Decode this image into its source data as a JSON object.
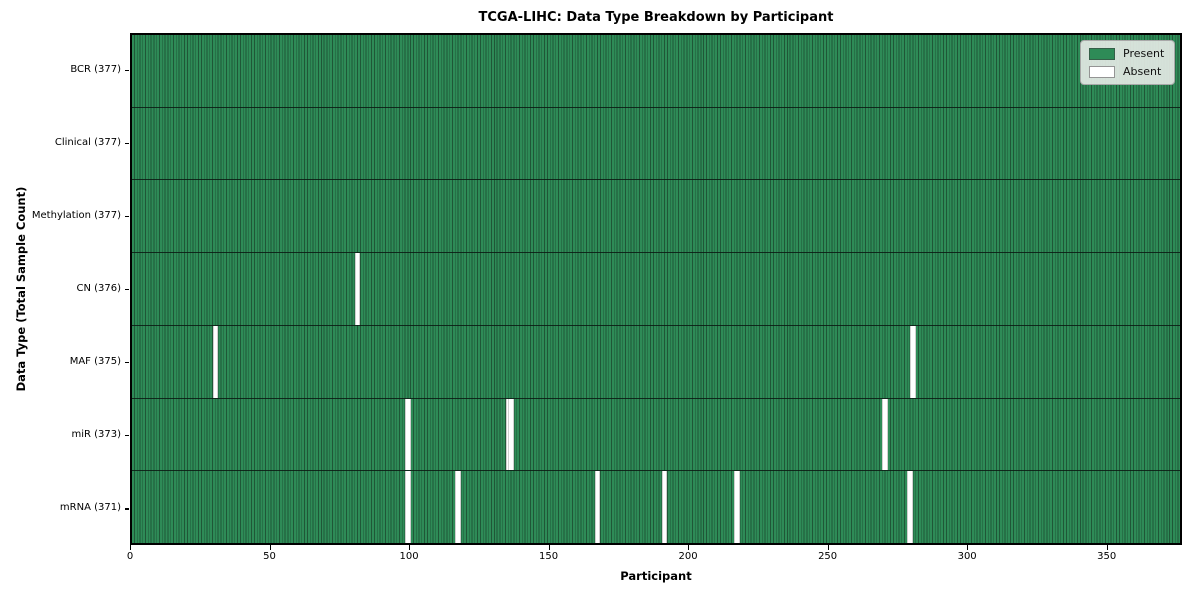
{
  "title": "TCGA-LIHC: Data Type Breakdown by Participant",
  "colors": {
    "present": "#2e8b57",
    "present_edge": "#1f5737",
    "absent": "#ffffff",
    "row_divider": "#141f18",
    "plot_border": "#000000",
    "legend_bg": "#e4e9e4"
  },
  "legend": {
    "present_label": "Present",
    "absent_label": "Absent"
  },
  "chart_data": {
    "type": "heatmap",
    "title": "TCGA-LIHC: Data Type Breakdown by Participant",
    "xlabel": "Participant",
    "ylabel": "Data Type (Total Sample Count)",
    "n_participants": 377,
    "x_range": [
      0,
      377
    ],
    "x_ticks": [
      0,
      50,
      100,
      150,
      200,
      250,
      300,
      350
    ],
    "grid": false,
    "legend_position": "upper right",
    "legend_entries": [
      {
        "label": "Present",
        "color": "#2e8b57"
      },
      {
        "label": "Absent",
        "color": "#ffffff"
      }
    ],
    "rows": [
      {
        "label": "BCR (377)",
        "data_type": "BCR",
        "total": 377,
        "absent_participants": []
      },
      {
        "label": "Clinical (377)",
        "data_type": "Clinical",
        "total": 377,
        "absent_participants": []
      },
      {
        "label": "Methylation (377)",
        "data_type": "Methylation",
        "total": 377,
        "absent_participants": []
      },
      {
        "label": "CN (376)",
        "data_type": "CN",
        "total": 376,
        "absent_participants": [
          80
        ]
      },
      {
        "label": "MAF (375)",
        "data_type": "MAF",
        "total": 375,
        "absent_participants": [
          29,
          279
        ]
      },
      {
        "label": "miR (373)",
        "data_type": "miR",
        "total": 373,
        "absent_participants": [
          98,
          134,
          135,
          269
        ]
      },
      {
        "label": "mRNA (371)",
        "data_type": "mRNA",
        "total": 371,
        "absent_participants": [
          98,
          116,
          166,
          190,
          216,
          278
        ]
      }
    ]
  }
}
